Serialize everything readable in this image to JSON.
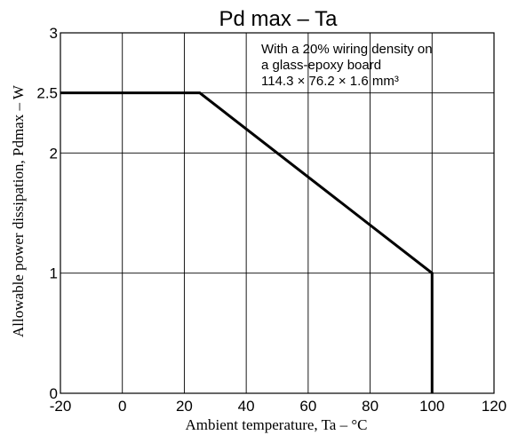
{
  "chart_data": {
    "type": "line",
    "title": "Pd max  –  Ta",
    "xlabel": "Ambient temperature, Ta – °C",
    "ylabel": "Allowable power dissipation, Pdmax – W",
    "annotation_lines": [
      "With a 20% wiring density on",
      "a glass-epoxy board",
      "114.3 × 76.2 × 1.6 mm³"
    ],
    "xlim": [
      -20,
      120
    ],
    "ylim": [
      0,
      3
    ],
    "x_ticks": [
      -20,
      0,
      20,
      40,
      60,
      80,
      100,
      120
    ],
    "x_tick_labels": [
      "-20",
      "0",
      "20",
      "40",
      "60",
      "80",
      "100",
      "120"
    ],
    "y_ticks": [
      0,
      1,
      2,
      2.5,
      3
    ],
    "y_tick_labels": [
      "0",
      "1",
      "2",
      "2.5",
      "3"
    ],
    "grid": true,
    "series": [
      {
        "x": [
          -20,
          25,
          100,
          100
        ],
        "y": [
          2.5,
          2.5,
          1,
          0
        ]
      }
    ]
  }
}
